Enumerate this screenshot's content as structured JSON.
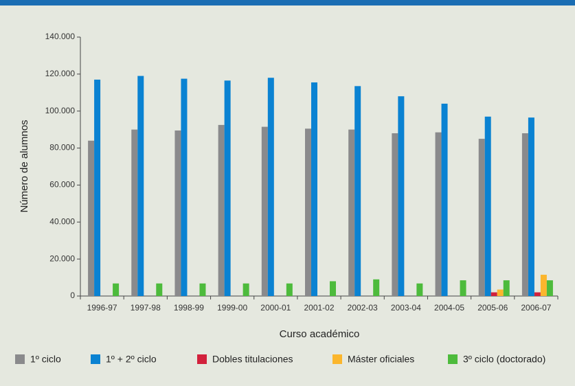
{
  "chart_data": {
    "type": "bar",
    "x_label": "Curso académico",
    "y_label": "Número de alumnos",
    "categories": [
      "1996-97",
      "1997-98",
      "1998-99",
      "1999-00",
      "2000-01",
      "2001-02",
      "2002-03",
      "2003-04",
      "2004-05",
      "2005-06",
      "2006-07"
    ],
    "series": [
      {
        "name": "1º ciclo",
        "color": "#8a8a8c",
        "values": [
          84000,
          90000,
          89500,
          92500,
          91500,
          90500,
          90000,
          88000,
          88500,
          85000,
          88000
        ]
      },
      {
        "name": "1º + 2º ciclo",
        "color": "#0a82d2",
        "values": [
          117000,
          119000,
          117500,
          116500,
          118000,
          115500,
          113500,
          108000,
          104000,
          97000,
          96500
        ]
      },
      {
        "name": "Dobles titulaciones",
        "color": "#d2213c",
        "values": [
          null,
          null,
          null,
          null,
          null,
          null,
          null,
          null,
          null,
          2000,
          2000
        ]
      },
      {
        "name": "Máster oficiales",
        "color": "#fbb62d",
        "values": [
          null,
          null,
          null,
          null,
          null,
          null,
          null,
          null,
          null,
          3500,
          11500
        ]
      },
      {
        "name": "3º ciclo (doctorado)",
        "color": "#4dbb3c",
        "values": [
          6800,
          6800,
          6800,
          6800,
          6800,
          8000,
          9000,
          6800,
          8500,
          8500,
          8500
        ]
      }
    ],
    "ylim": [
      0,
      140000
    ],
    "yticks": [
      0,
      {
        "value": 20000,
        "label": "20.000"
      },
      {
        "value": 40000,
        "label": "40.000"
      },
      {
        "value": 60000,
        "label": "60.000"
      },
      {
        "value": 80000,
        "label": "80.000"
      },
      {
        "value": 100000,
        "label": "100.000"
      },
      {
        "value": 120000,
        "label": "120.000"
      },
      {
        "value": 140000,
        "label": "140.000"
      }
    ],
    "grid": false
  }
}
